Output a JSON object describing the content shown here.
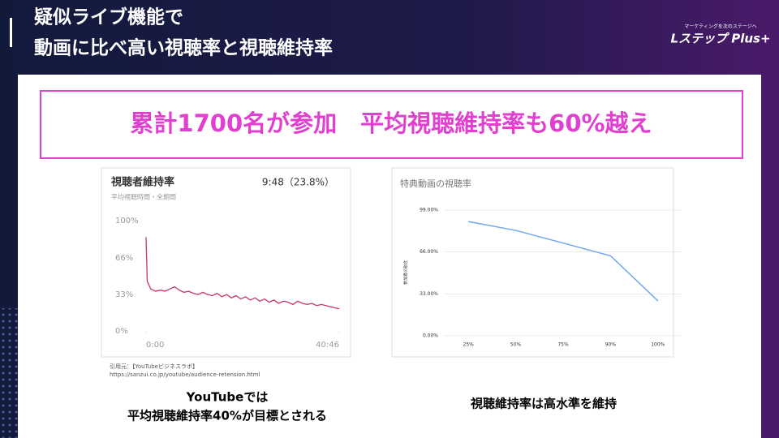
{
  "header": {
    "title_lines": [
      "疑似ライブ機能で",
      "動画に比べ高い視聴率と視聴維持率"
    ],
    "logo_tagline": "マーケティングを次のステージへ",
    "logo": "Lステップ Plus+"
  },
  "headline": "累計1700名が参加　平均視聴維持率も60%越え",
  "chart_data": [
    {
      "type": "line",
      "title": "視聴者維持率",
      "subtitle": "平均視聴時間・全期間",
      "annotation": "9:48（23.8%）",
      "color": "#c8326e",
      "x": [
        0,
        15,
        60,
        120,
        180,
        240,
        300,
        360,
        420,
        480,
        540,
        600,
        660,
        720,
        780,
        840,
        900,
        960,
        1020,
        1080,
        1140,
        1200,
        1260,
        1320,
        1380,
        1440,
        1500,
        1560,
        1620,
        1680,
        1740,
        1800,
        1860,
        1920,
        1980,
        2040,
        2100,
        2160,
        2220,
        2446
      ],
      "values": [
        85,
        45,
        38,
        36,
        37,
        36,
        38,
        40,
        37,
        35,
        36,
        34,
        33,
        35,
        33,
        32,
        34,
        31,
        33,
        30,
        32,
        29,
        31,
        28,
        30,
        27,
        29,
        26,
        28,
        25,
        27,
        26,
        24,
        27,
        25,
        24,
        25,
        23,
        24,
        20
      ],
      "xlim": [
        0,
        2446
      ],
      "xticks": [
        {
          "value": 0,
          "label": "0:00"
        },
        {
          "value": 2446,
          "label": "40:46"
        }
      ],
      "ylim": [
        0,
        100
      ],
      "yticks": [
        {
          "value": 0,
          "label": "0%"
        },
        {
          "value": 33,
          "label": "33%"
        },
        {
          "value": 66,
          "label": "66%"
        },
        {
          "value": 100,
          "label": "100%"
        }
      ],
      "grid": false
    },
    {
      "type": "line",
      "title": "特典動画の視聴率",
      "y_label": "参加者の割合",
      "color": "#6fa6ec",
      "categories": [
        "25%",
        "50%",
        "75%",
        "90%",
        "100%"
      ],
      "values": [
        90,
        83,
        73,
        63,
        27.5
      ],
      "ylim": [
        0,
        99
      ],
      "yticks": [
        {
          "value": 0,
          "label": "0.00%"
        },
        {
          "value": 33,
          "label": "33.00%"
        },
        {
          "value": 66,
          "label": "66.00%"
        },
        {
          "value": 99,
          "label": "99.00%"
        }
      ],
      "grid": true
    }
  ],
  "source": {
    "label": "引用元：【YouTubeビジネスラボ】",
    "url": "https://sanzui.co.jp/youtube/audience-retension.html"
  },
  "captions": {
    "left_lines": [
      "YouTubeでは",
      "平均視聴維持率40%が目標とされる"
    ],
    "right": "視聴維持率は高水準を維持"
  }
}
